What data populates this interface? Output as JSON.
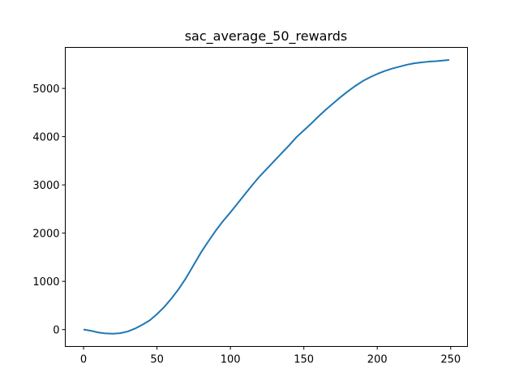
{
  "chart_data": {
    "type": "line",
    "title": "sac_average_50_rewards",
    "xlabel": "",
    "ylabel": "",
    "xlim": [
      -12.45,
      261.45
    ],
    "ylim": [
      -350,
      5850
    ],
    "xticks": [
      0,
      50,
      100,
      150,
      200,
      250
    ],
    "yticks": [
      0,
      1000,
      2000,
      3000,
      4000,
      5000
    ],
    "xtick_labels": [
      "0",
      "50",
      "100",
      "150",
      "200",
      "250"
    ],
    "ytick_labels": [
      "0",
      "1000",
      "2000",
      "3000",
      "4000",
      "5000"
    ],
    "grid": false,
    "line_color": "#1f77b4",
    "series": [
      {
        "x": [
          0,
          5,
          10,
          15,
          20,
          25,
          30,
          35,
          40,
          45,
          50,
          55,
          60,
          65,
          70,
          75,
          80,
          85,
          90,
          95,
          100,
          105,
          110,
          115,
          120,
          125,
          130,
          135,
          140,
          145,
          150,
          155,
          160,
          165,
          170,
          175,
          180,
          185,
          190,
          195,
          200,
          205,
          210,
          215,
          220,
          225,
          230,
          235,
          240,
          245,
          249
        ],
        "values": [
          0,
          -25,
          -60,
          -80,
          -85,
          -75,
          -40,
          20,
          100,
          190,
          320,
          470,
          650,
          850,
          1080,
          1340,
          1600,
          1830,
          2050,
          2250,
          2430,
          2620,
          2810,
          3000,
          3180,
          3340,
          3500,
          3660,
          3820,
          3990,
          4130,
          4270,
          4420,
          4560,
          4690,
          4820,
          4940,
          5050,
          5150,
          5230,
          5300,
          5360,
          5410,
          5450,
          5490,
          5520,
          5540,
          5555,
          5565,
          5580,
          5590
        ]
      }
    ]
  }
}
